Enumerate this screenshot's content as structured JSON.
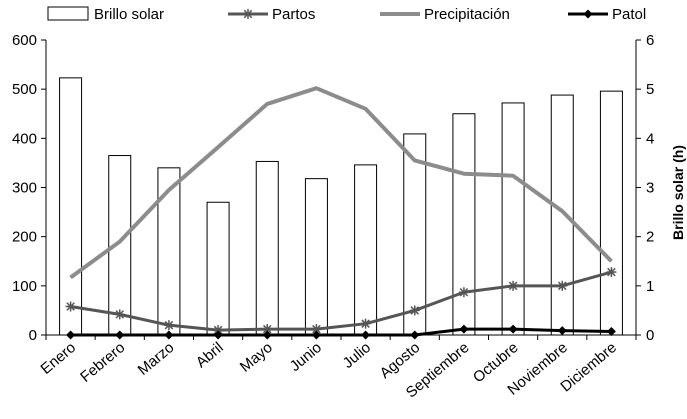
{
  "chart_data": {
    "type": "bar",
    "categories": [
      "Enero",
      "Febrero",
      "Marzo",
      "Abril",
      "Mayo",
      "Junio",
      "Julio",
      "Agosto",
      "Septiembre",
      "Octubre",
      "Noviembre",
      "Diciembre"
    ],
    "series": [
      {
        "name": "Brillo solar",
        "type": "bar",
        "axis": "right",
        "color": "#000000",
        "values": [
          5.23,
          3.65,
          3.4,
          2.7,
          3.53,
          3.18,
          3.46,
          4.09,
          4.5,
          4.72,
          4.88,
          4.96
        ]
      },
      {
        "name": "Partos",
        "type": "line",
        "axis": "left",
        "color": "#555555",
        "marker": "asterisk",
        "values": [
          58,
          42,
          20,
          10,
          12,
          12,
          23,
          50,
          87,
          100,
          100,
          128
        ]
      },
      {
        "name": "Precipitación",
        "type": "line",
        "axis": "left",
        "color": "#8c8c8c",
        "marker": "none",
        "values": [
          117,
          190,
          295,
          382,
          470,
          502,
          460,
          355,
          328,
          324,
          252,
          150
        ]
      },
      {
        "name": "Patol",
        "type": "line",
        "axis": "left",
        "color": "#000000",
        "marker": "diamond",
        "values": [
          0,
          0,
          0,
          0,
          0,
          0,
          0,
          0,
          12,
          12,
          9,
          7
        ]
      }
    ],
    "y_left": {
      "range": [
        0,
        600
      ],
      "ticks": [
        "0",
        "100",
        "200",
        "300",
        "400",
        "500",
        "600"
      ]
    },
    "y_right": {
      "range": [
        0,
        6
      ],
      "ticks": [
        "0",
        "1",
        "2",
        "3",
        "4",
        "5",
        "6"
      ],
      "label": "Brillo solar (h)"
    },
    "legend_position": "top",
    "grid": false
  }
}
